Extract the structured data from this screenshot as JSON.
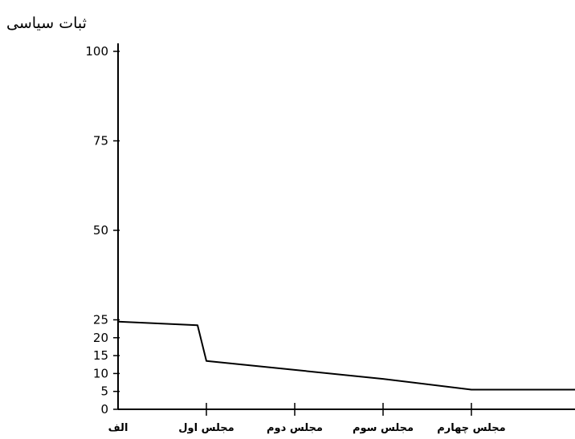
{
  "chart_data": {
    "type": "line",
    "title": "",
    "xlabel": "",
    "ylabel": "ثبات سیاسی",
    "categories": [
      "الف",
      "مجلس اول",
      "مجلس دوم",
      "مجلس سوم",
      "مجلس چهارم"
    ],
    "yticks": [
      0,
      5,
      10,
      15,
      20,
      25,
      50,
      75,
      100
    ],
    "ylim": [
      0,
      100
    ],
    "series": [
      {
        "points": [
          {
            "x": 0,
            "y": 24.5
          },
          {
            "x": 0.9,
            "y": 23.5
          },
          {
            "x": 1.0,
            "y": 13.5
          },
          {
            "x": 2.0,
            "y": 11
          },
          {
            "x": 3.0,
            "y": 8.5
          },
          {
            "x": 4.0,
            "y": 5.5
          },
          {
            "x": 5.2,
            "y": 5.5
          }
        ]
      }
    ],
    "grid": false,
    "line_color": "#000000"
  }
}
